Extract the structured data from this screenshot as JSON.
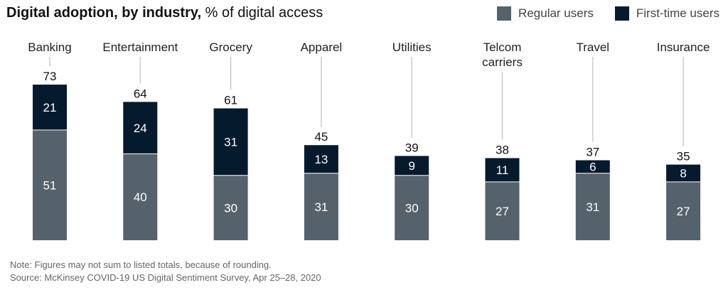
{
  "header": {
    "title_bold": "Digital adoption, by industry,",
    "title_rest": " % of digital access"
  },
  "colors": {
    "regular": "#55626b",
    "first_time": "#061a2e",
    "leader": "#c8cccf"
  },
  "chart_data": {
    "type": "bar",
    "stacked": true,
    "title": "Digital adoption, by industry",
    "ylabel": "% of digital access",
    "legend_position": "top-right",
    "categories": [
      "Banking",
      "Entertainment",
      "Grocery",
      "Apparel",
      "Utilities",
      "Telcom carriers",
      "Travel",
      "Insurance"
    ],
    "category_lines": [
      [
        "Banking"
      ],
      [
        "Entertainment"
      ],
      [
        "Grocery"
      ],
      [
        "Apparel"
      ],
      [
        "Utilities"
      ],
      [
        "Telcom",
        "carriers"
      ],
      [
        "Travel"
      ],
      [
        "Insurance"
      ]
    ],
    "series": [
      {
        "name": "Regular users",
        "values": [
          51,
          40,
          30,
          31,
          30,
          27,
          31,
          27
        ]
      },
      {
        "name": "First-time users",
        "values": [
          21,
          24,
          31,
          13,
          9,
          11,
          6,
          8
        ]
      }
    ],
    "totals": [
      73,
      64,
      61,
      45,
      39,
      38,
      37,
      35
    ],
    "ylim": [
      0,
      73
    ],
    "grid": false
  },
  "footer": {
    "note": "Note: Figures may not sum to listed totals, because of rounding.",
    "source": "Source: McKinsey COVID-19 US Digital Sentiment Survey, Apr 25–28, 2020"
  }
}
